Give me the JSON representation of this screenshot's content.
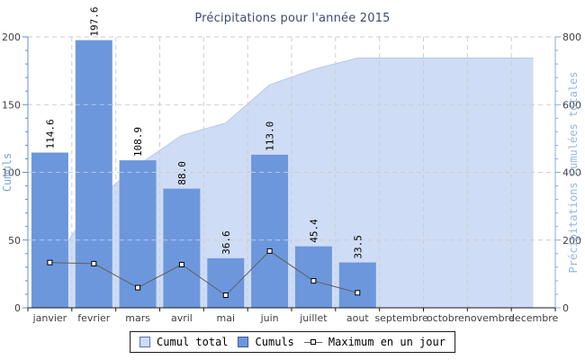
{
  "chart_data": {
    "type": "combo",
    "title": "Précipitations pour l'année 2015",
    "title_color": "#3c4c6d",
    "categories": [
      "janvier",
      "fevrier",
      "mars",
      "avril",
      "mai",
      "juin",
      "juillet",
      "aout",
      "septembre",
      "octobre",
      "novembre",
      "decembre"
    ],
    "series": [
      {
        "name": "Cumul total",
        "type": "area",
        "axis": "right",
        "color": "#cfdcf5",
        "edge_color": "#b7c9ed",
        "values": [
          114.6,
          312.2,
          421.1,
          509.1,
          545.7,
          658.7,
          704.1,
          737.6,
          737.6,
          737.6,
          737.6,
          737.6
        ]
      },
      {
        "name": "Cumuls",
        "type": "bar",
        "axis": "left",
        "color": "#6d97dc",
        "values": [
          114.6,
          197.6,
          108.9,
          88.0,
          36.6,
          113.0,
          45.4,
          33.5
        ],
        "labels": [
          "114.6",
          "197.6",
          "108.9",
          "88.0",
          "36.6",
          "113.0",
          "45.4",
          "33.5"
        ]
      },
      {
        "name": "Maximum en un jour",
        "type": "line",
        "axis": "left",
        "color": "#5f5f5f",
        "marker": "square",
        "values": [
          33.4,
          32.6,
          14.9,
          31.9,
          9.3,
          41.9,
          19.9,
          11.1
        ]
      }
    ],
    "left_axis": {
      "title": "Cumuls",
      "min": 0,
      "max": 200,
      "ticks": [
        0,
        50,
        100,
        150,
        200
      ],
      "minor_step": 10,
      "line_color": "#6090cf",
      "title_color": "#7ca3da",
      "tick_label_color": "#404040"
    },
    "right_axis": {
      "title": "Précipitations Cumulées totales",
      "min": 0,
      "max": 800,
      "ticks": [
        0,
        200,
        400,
        600,
        800
      ],
      "minor_step": 40,
      "line_color": "#86abe2",
      "title_color": "#93b7e8",
      "tick_label_color": "#404040"
    },
    "x_axis": {
      "line_color": "#1a1a1a",
      "label_color": "#3f3f3f"
    },
    "grid": {
      "show": true,
      "color": "#cdcdcd"
    },
    "legend": {
      "position": "bottom",
      "items": [
        "Cumul total",
        "Cumuls",
        "Maximum en un jour"
      ]
    }
  }
}
